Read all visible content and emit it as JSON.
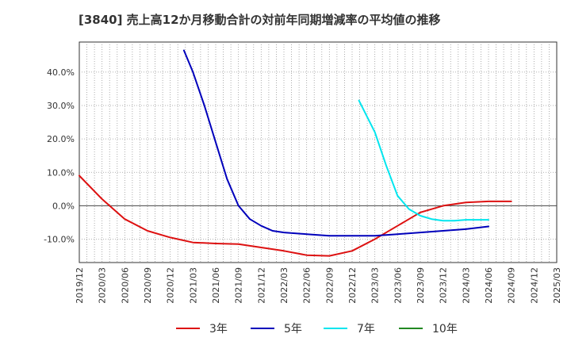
{
  "chart_data": {
    "type": "line",
    "title": "[3840]  売上高12か月移動合計の対前年同期増減率の平均値の推移",
    "xlabel": "",
    "ylabel": "",
    "ylim": [
      -17,
      49
    ],
    "yticks": [
      40,
      30,
      20,
      10,
      0,
      -10
    ],
    "ytick_labels": [
      "40.0%",
      "30.0%",
      "20.0%",
      "10.0%",
      "0.0%",
      "-10.0%"
    ],
    "x_tick_labels": [
      "2019/12",
      "2020/03",
      "2020/06",
      "2020/09",
      "2020/12",
      "2021/03",
      "2021/06",
      "2021/09",
      "2021/12",
      "2022/03",
      "2022/06",
      "2022/09",
      "2022/12",
      "2023/03",
      "2023/06",
      "2023/09",
      "2023/12",
      "2024/03",
      "2024/06",
      "2024/09",
      "2024/12",
      "2025/03"
    ],
    "grid": true,
    "legend_position": "bottom",
    "series": [
      {
        "name": "3年",
        "color": "#dd1111",
        "points": [
          [
            0,
            9
          ],
          [
            1,
            2
          ],
          [
            2,
            -4
          ],
          [
            3,
            -7.5
          ],
          [
            4,
            -9.5
          ],
          [
            5,
            -11
          ],
          [
            6,
            -11.3
          ],
          [
            7,
            -11.5
          ],
          [
            8,
            -12.5
          ],
          [
            9,
            -13.5
          ],
          [
            10,
            -14.8
          ],
          [
            11,
            -15
          ],
          [
            12,
            -13.5
          ],
          [
            13,
            -10
          ],
          [
            14,
            -6
          ],
          [
            15,
            -2
          ],
          [
            16,
            0
          ],
          [
            17,
            1
          ],
          [
            18,
            1.3
          ],
          [
            19,
            1.3
          ]
        ]
      },
      {
        "name": "5年",
        "color": "#0000bb",
        "points": [
          [
            4.6,
            46.5
          ],
          [
            5,
            40
          ],
          [
            5.5,
            30
          ],
          [
            6,
            19
          ],
          [
            6.5,
            8
          ],
          [
            7,
            0
          ],
          [
            7.5,
            -4
          ],
          [
            8,
            -6
          ],
          [
            8.5,
            -7.5
          ],
          [
            9,
            -8
          ],
          [
            10,
            -8.5
          ],
          [
            11,
            -9
          ],
          [
            12,
            -9
          ],
          [
            13,
            -9
          ],
          [
            14,
            -8.5
          ],
          [
            15,
            -8
          ],
          [
            16,
            -7.5
          ],
          [
            17,
            -7
          ],
          [
            18,
            -6.2
          ]
        ]
      },
      {
        "name": "7年",
        "color": "#00e5ee",
        "points": [
          [
            12.3,
            31.5
          ],
          [
            13,
            22
          ],
          [
            13.5,
            12
          ],
          [
            14,
            3
          ],
          [
            14.5,
            -1
          ],
          [
            15,
            -3
          ],
          [
            15.5,
            -4
          ],
          [
            16,
            -4.5
          ],
          [
            16.5,
            -4.5
          ],
          [
            17,
            -4.2
          ],
          [
            18,
            -4.2
          ]
        ]
      },
      {
        "name": "10年",
        "color": "#228822",
        "points": []
      }
    ]
  }
}
